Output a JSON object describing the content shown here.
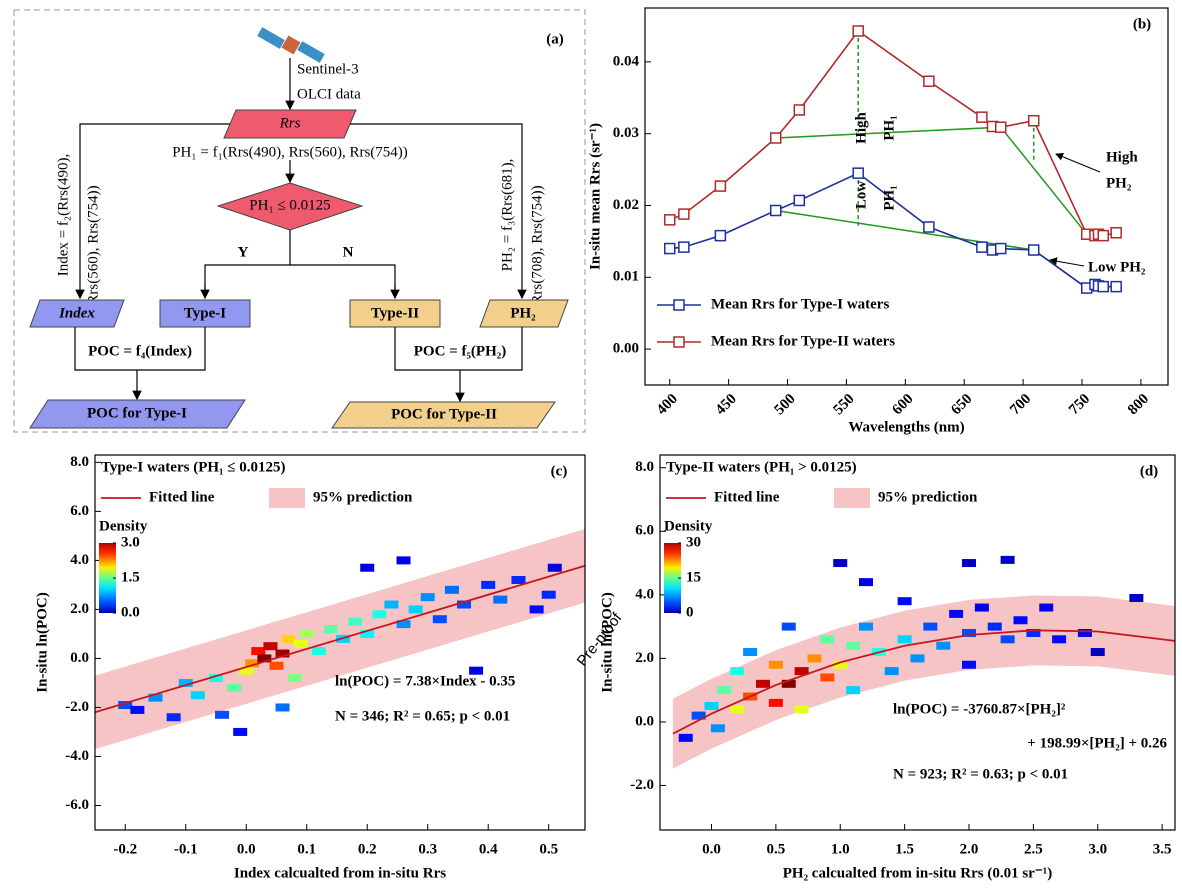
{
  "flowchart": {
    "label": "(a)",
    "satellite": [
      "Sentinel-3",
      "OLCI data"
    ],
    "input": "Rrs",
    "ph1_formula": "PH₁ = f₁(Rrs(490), Rrs(560), Rrs(754))",
    "decision": "PH₁ ≤ 0.0125",
    "yes": "Y",
    "no": "N",
    "index_formula": [
      "Index = f₂(Rrs(490),",
      "Rrs(560), Rrs(754))"
    ],
    "ph2_formula": [
      "PH₂ = f₃(Rrs(681),",
      "Rrs(708), Rrs(754))"
    ],
    "nodes": [
      "Index",
      "Type-I",
      "Type-II",
      "PH₂"
    ],
    "poc1_formula": "POC = f₄(Index)",
    "poc2_formula": "POC = f₅(PH₂)",
    "outputs": [
      "POC for Type-I",
      "POC for Type-II"
    ]
  },
  "watermark": "Pre-proof",
  "chart_data": [
    {
      "type": "line",
      "label": "(b)",
      "x": [
        400,
        412,
        443,
        490,
        510,
        560,
        620,
        665,
        674,
        681,
        709,
        754,
        761,
        764,
        768,
        779
      ],
      "series": [
        {
          "name": "Mean Rrs for Type-I waters",
          "color": "#1f2f9e",
          "values": [
            0.014,
            0.0142,
            0.0158,
            0.0193,
            0.0207,
            0.0245,
            0.017,
            0.0142,
            0.0138,
            0.014,
            0.0138,
            0.0085,
            0.009,
            0.0088,
            0.0087,
            0.0087
          ]
        },
        {
          "name": "Mean Rrs for Type-II waters",
          "color": "#b02a2a",
          "values": [
            0.018,
            0.0188,
            0.0227,
            0.0294,
            0.0333,
            0.0443,
            0.0373,
            0.0323,
            0.031,
            0.0309,
            0.0318,
            0.016,
            0.0158,
            0.016,
            0.0158,
            0.0162
          ]
        }
      ],
      "guides": [
        {
          "x": [
            490,
            681,
            754
          ],
          "y": [
            0.0294,
            0.0309,
            0.016
          ]
        },
        {
          "x": [
            490,
            709,
            754
          ],
          "y": [
            0.0193,
            0.0138,
            0.0085
          ]
        },
        {
          "x": [
            560,
            560
          ],
          "y": [
            0.0443,
            0.0302
          ],
          "dashed": true
        },
        {
          "x": [
            709,
            709
          ],
          "y": [
            0.0318,
            0.026
          ],
          "dashed": true
        },
        {
          "x": [
            560,
            560
          ],
          "y": [
            0.0245,
            0.0172
          ],
          "dashed": true
        }
      ],
      "guide_color": "#22961f",
      "annotations": [
        "High",
        "PH₁",
        "Low",
        "PH₁",
        "High",
        "PH₂",
        "Low PH₂"
      ],
      "xlabel": "Wavelengths (nm)",
      "ylabel": "In-situ mean Rrs (sr⁻¹)",
      "xlim": [
        379,
        823
      ],
      "xticks": [
        400,
        450,
        500,
        550,
        600,
        650,
        700,
        750,
        800
      ],
      "ylim": [
        -0.005,
        0.0475
      ],
      "yticks": [
        {
          "value": 0,
          "label": "0.00"
        },
        {
          "value": 0.01,
          "label": "0.01"
        },
        {
          "value": 0.02,
          "label": "0.02"
        },
        {
          "value": 0.03,
          "label": "0.03"
        },
        {
          "value": 0.04,
          "label": "0.04"
        }
      ],
      "legend": "lower left"
    },
    {
      "type": "scatter",
      "label": "(c)",
      "subtitle": "Type-I waters (PH₁ ≤ 0.0125)",
      "x": [
        -0.2,
        -0.18,
        -0.15,
        -0.12,
        -0.1,
        -0.08,
        -0.05,
        -0.04,
        -0.02,
        0.0,
        0.01,
        0.02,
        0.03,
        0.04,
        0.05,
        0.06,
        0.07,
        0.08,
        0.09,
        0.1,
        0.12,
        0.14,
        0.16,
        0.18,
        0.2,
        0.22,
        0.24,
        0.26,
        0.28,
        0.3,
        0.32,
        0.34,
        0.36,
        0.4,
        0.42,
        0.45,
        0.48,
        0.5,
        0.51,
        -0.01,
        0.2,
        0.26,
        0.06,
        0.38
      ],
      "y": [
        -1.9,
        -2.1,
        -1.6,
        -2.4,
        -1.0,
        -1.5,
        -0.8,
        -2.3,
        -1.2,
        -0.5,
        -0.2,
        0.3,
        0.0,
        0.5,
        -0.3,
        0.2,
        0.8,
        -0.8,
        0.6,
        1.0,
        0.3,
        1.2,
        0.8,
        1.5,
        1.0,
        1.8,
        2.2,
        1.4,
        2.0,
        2.5,
        1.6,
        2.8,
        2.2,
        3.0,
        2.4,
        3.2,
        2.0,
        2.6,
        3.7,
        -3.0,
        3.7,
        4.0,
        -2.0,
        -0.5
      ],
      "density": [
        0.6,
        0.4,
        0.8,
        0.5,
        0.9,
        1.0,
        1.2,
        0.6,
        1.4,
        1.8,
        2.2,
        2.6,
        3.0,
        2.8,
        2.4,
        2.9,
        2.0,
        1.5,
        1.8,
        1.6,
        1.2,
        1.4,
        1.0,
        1.3,
        1.1,
        1.2,
        0.9,
        0.8,
        1.0,
        0.8,
        0.6,
        0.7,
        0.6,
        0.5,
        0.7,
        0.5,
        0.4,
        0.5,
        0.3,
        0.4,
        0.3,
        0.3,
        0.7,
        0.3
      ],
      "colorbar": {
        "label": "Density",
        "clim": [
          0,
          3
        ],
        "ticks": [
          {
            "value": 3,
            "label": "3.0"
          },
          1.5,
          {
            "value": 0,
            "label": "0.0"
          }
        ]
      },
      "fit": {
        "name": "Fitted line",
        "color": "#c8161d",
        "x": [
          -0.25,
          0.56
        ],
        "y": [
          -2.195,
          3.78
        ]
      },
      "band": {
        "name": "95% prediction",
        "color": "#f7c4c6",
        "x": [
          -0.25,
          0.56
        ],
        "lower": [
          -3.7,
          2.28
        ],
        "upper": [
          -0.7,
          5.28
        ]
      },
      "equation": [
        "ln(POC) = 7.38×Index - 0.35"
      ],
      "stats": "N = 346; R² = 0.65; p < 0.01",
      "xlabel": "Index calcualted from in-situ Rrs",
      "ylabel": "In-situ ln(POC)",
      "xlim": [
        -0.25,
        0.56
      ],
      "xticks": [
        -0.2,
        -0.1,
        {
          "value": 0,
          "label": "0.0"
        },
        0.1,
        0.2,
        0.3,
        0.4,
        0.5
      ],
      "ylim": [
        -7.0,
        8.3
      ],
      "yticks": [
        {
          "value": -6,
          "label": "-6.0"
        },
        {
          "value": -4,
          "label": "-4.0"
        },
        {
          "value": -2,
          "label": "-2.0"
        },
        {
          "value": 0,
          "label": "0.0"
        },
        {
          "value": 2,
          "label": "2.0"
        },
        {
          "value": 4,
          "label": "4.0"
        },
        {
          "value": 6,
          "label": "6.0"
        },
        {
          "value": 8,
          "label": "8.0"
        }
      ]
    },
    {
      "type": "scatter",
      "label": "(d)",
      "subtitle": "Type-II waters (PH₁ > 0.0125)",
      "x": [
        -0.2,
        -0.1,
        0.0,
        0.05,
        0.1,
        0.2,
        0.2,
        0.3,
        0.4,
        0.5,
        0.5,
        0.6,
        0.7,
        0.7,
        0.8,
        0.9,
        0.9,
        1.0,
        1.1,
        1.1,
        1.2,
        1.3,
        1.4,
        1.5,
        1.5,
        1.6,
        1.7,
        1.8,
        1.9,
        2.0,
        2.0,
        2.1,
        2.2,
        2.3,
        2.4,
        2.5,
        2.6,
        2.7,
        2.9,
        3.0,
        3.3,
        1.2,
        1.0,
        2.0,
        2.3,
        0.6,
        0.3
      ],
      "y": [
        -0.5,
        0.2,
        0.5,
        -0.2,
        1.0,
        0.4,
        1.6,
        0.8,
        1.2,
        0.6,
        1.8,
        1.2,
        1.6,
        0.4,
        2.0,
        1.4,
        2.6,
        1.8,
        2.4,
        1.0,
        3.0,
        2.2,
        1.6,
        2.6,
        3.8,
        2.0,
        3.0,
        2.4,
        3.4,
        2.8,
        1.8,
        3.6,
        3.0,
        2.6,
        3.2,
        2.8,
        3.6,
        2.6,
        2.8,
        2.2,
        3.9,
        4.4,
        5.0,
        5.0,
        5.1,
        3.0,
        2.2
      ],
      "density": [
        4,
        6,
        10,
        8,
        14,
        18,
        12,
        24,
        28,
        26,
        22,
        30,
        28,
        18,
        22,
        24,
        14,
        18,
        14,
        10,
        8,
        12,
        8,
        10,
        4,
        8,
        6,
        8,
        4,
        6,
        4,
        3,
        5,
        6,
        4,
        5,
        3,
        4,
        3,
        2,
        2,
        3,
        2,
        2,
        2,
        6,
        8
      ],
      "colorbar": {
        "label": "Density",
        "clim": [
          0,
          30
        ],
        "ticks": [
          30,
          15,
          0
        ]
      },
      "fit": {
        "name": "Fitted line",
        "color": "#c8161d",
        "x": [
          -0.3,
          0,
          0.5,
          1,
          1.5,
          2,
          2.5,
          3,
          3.6
        ],
        "y": [
          -0.371,
          0.26,
          1.161,
          1.874,
          2.399,
          2.736,
          2.884,
          2.845,
          2.55
        ]
      },
      "band": {
        "name": "95% prediction",
        "color": "#f7c4c6",
        "x": [
          -0.3,
          0,
          0.5,
          1,
          1.5,
          2,
          2.5,
          3,
          3.6
        ],
        "lower": [
          -1.47,
          -0.84,
          0.06,
          0.77,
          1.3,
          1.64,
          1.78,
          1.75,
          1.45
        ],
        "upper": [
          0.73,
          1.36,
          2.26,
          2.97,
          3.5,
          3.84,
          3.98,
          3.95,
          3.65
        ]
      },
      "equation": [
        "ln(POC) = -3760.87×[PH₂]²",
        "+ 198.99×[PH₂] + 0.26"
      ],
      "stats": "N = 923; R² = 0.63; p < 0.01",
      "xlabel": "PH₂ calcualted from in-situ Rrs (0.01 sr⁻¹)",
      "ylabel": "In-situ ln(POC)",
      "xlim": [
        -0.4,
        3.6
      ],
      "xticks": [
        {
          "value": 0,
          "label": "0.0"
        },
        0.5,
        {
          "value": 1,
          "label": "1.0"
        },
        1.5,
        {
          "value": 2,
          "label": "2.0"
        },
        2.5,
        {
          "value": 3,
          "label": "3.0"
        },
        3.5
      ],
      "ylim": [
        -3.4,
        8.4
      ],
      "yticks": [
        {
          "value": -2,
          "label": "-2.0"
        },
        {
          "value": 0,
          "label": "0.0"
        },
        {
          "value": 2,
          "label": "2.0"
        },
        {
          "value": 4,
          "label": "4.0"
        },
        {
          "value": 6,
          "label": "6.0"
        },
        {
          "value": 8,
          "label": "8.0"
        }
      ]
    }
  ]
}
